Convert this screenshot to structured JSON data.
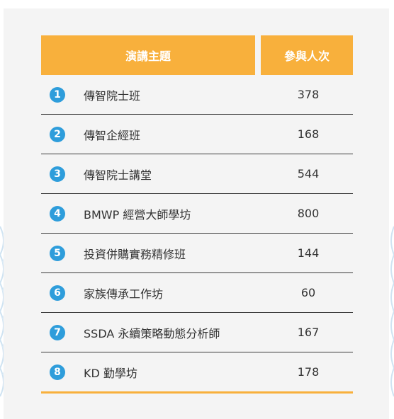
{
  "table": {
    "headers": {
      "topic": "演講主題",
      "count": "參與人次"
    },
    "rows": [
      {
        "index": "1",
        "topic": "傳智院士班",
        "count": "378"
      },
      {
        "index": "2",
        "topic": "傳智企經班",
        "count": "168"
      },
      {
        "index": "3",
        "topic": "傳智院士講堂",
        "count": "544"
      },
      {
        "index": "4",
        "topic": "BMWP 經營大師學坊",
        "count": "800"
      },
      {
        "index": "5",
        "topic": "投資併購實務精修班",
        "count": "144"
      },
      {
        "index": "6",
        "topic": "家族傳承工作坊",
        "count": "60"
      },
      {
        "index": "7",
        "topic": "SSDA 永續策略動態分析師",
        "count": "167"
      },
      {
        "index": "8",
        "topic": "KD 勤學坊",
        "count": "178"
      }
    ]
  },
  "colors": {
    "header_bg": "#f8b03c",
    "badge_bg": "#2e9ddb",
    "card_bg": "#f4f4f4"
  }
}
